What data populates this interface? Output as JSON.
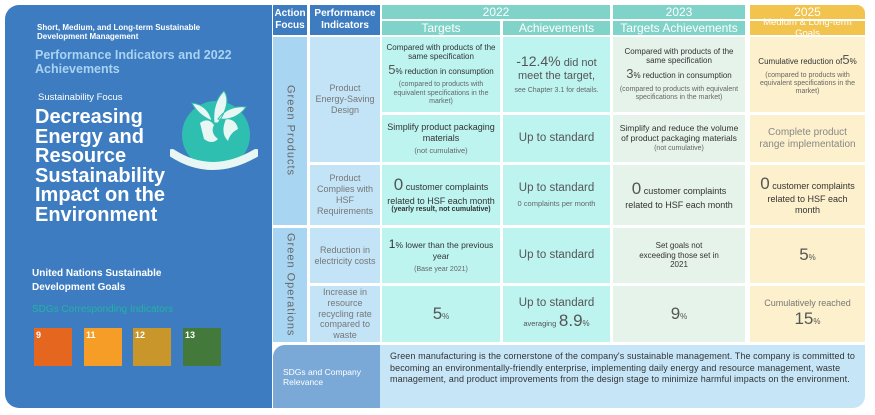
{
  "left": {
    "subtitle": "Short, Medium, and Long-term Sustainable Development Management",
    "heading": "Performance Indicators and 2022 Achievements",
    "focus_label": "Sustainability Focus",
    "focus_title": "Decreasing Energy and Resource Sustainability Impact on the Environment",
    "un_label": "United Nations Sustainable Development Goals",
    "sdg_label": "SDGs Corresponding Indicators",
    "sdgs": [
      {
        "num": "9",
        "color": "#e5661e"
      },
      {
        "num": "11",
        "color": "#f59d27"
      },
      {
        "num": "12",
        "color": "#c9962b"
      },
      {
        "num": "13",
        "color": "#437a3b"
      }
    ]
  },
  "header": {
    "action_focus": "Action Focus",
    "performance_indicators": "Performance Indicators",
    "y2022": "2022",
    "targets": "Targets",
    "achievements": "Achievements",
    "y2023": "2023",
    "targets_achievements": "Targets  Achievements",
    "y2025": "2025",
    "goals": "Medium & Long-term Goals"
  },
  "groups": {
    "green_products": "Green Products",
    "green_operations": "Green Operations"
  },
  "rows": [
    {
      "indicator": "Product Energy-Saving Design",
      "t22": {
        "a": "Compared with products of the same specification",
        "num": "5",
        "b": "% reduction in consumption",
        "note": "(compared to products with equivalent specifications in the market)"
      },
      "a22": {
        "num": "-12.4%",
        "a": "did not meet the target,",
        "note": "see Chapter 3.1 for details."
      },
      "t23": {
        "a": "Compared with products of the same specification",
        "num": "3",
        "b": "% reduction in consumption",
        "note": "(compared to products with equivalent specifications in the market)"
      },
      "g25": {
        "a": "Cumulative reduction of",
        "num": "5",
        "b": "%",
        "note": "(compared to products with equivalent specifications in the market)"
      }
    },
    {
      "t22": {
        "a": "Simplify product packaging materials",
        "note": "(not cumulative)"
      },
      "a22": {
        "a": "Up to standard"
      },
      "t23": {
        "a": "Simplify and reduce the volume of product packaging materials",
        "note": "(not cumulative)"
      },
      "g25": {
        "a": "Complete product range implementation"
      }
    },
    {
      "indicator": "Product Complies with HSF Requirements",
      "t22": {
        "num": "0",
        "a": "customer complaints related to HSF each month",
        "note": "(yearly result, not cumulative)"
      },
      "a22": {
        "a": "Up to standard",
        "note": "0 complaints per month"
      },
      "t23": {
        "num": "0",
        "a": "customer complaints related to HSF each month"
      },
      "g25": {
        "num": "0",
        "a": "customer complaints related to HSF each month"
      }
    },
    {
      "indicator": "Reduction in electricity costs",
      "t22": {
        "num": "1",
        "a": "% lower than the previous year",
        "note": "(Base year 2021)"
      },
      "a22": {
        "a": "Up to standard"
      },
      "t23": {
        "a": "Set goals not exceeding those set in 2021"
      },
      "g25": {
        "num": "5",
        "b": "%"
      }
    },
    {
      "indicator": "Increase in resource recycling rate compared to waste",
      "t22": {
        "num": "5",
        "b": "%"
      },
      "a22": {
        "a": "Up to standard",
        "pre": "averaging",
        "num": "8.9",
        "b": "%"
      },
      "t23": {
        "num": "9",
        "b": "%"
      },
      "g25": {
        "a": "Cumulatively reached",
        "num": "15",
        "b": "%"
      }
    }
  ],
  "relevance": {
    "label": "SDGs and Company Relevance",
    "text": "Green manufacturing is the cornerstone of the company's sustainable management. The company is committed to becoming an environmentally-friendly enterprise, implementing daily energy and resource management, waste management, and product improvements from the design stage to minimize harmful impacts on the environment."
  }
}
